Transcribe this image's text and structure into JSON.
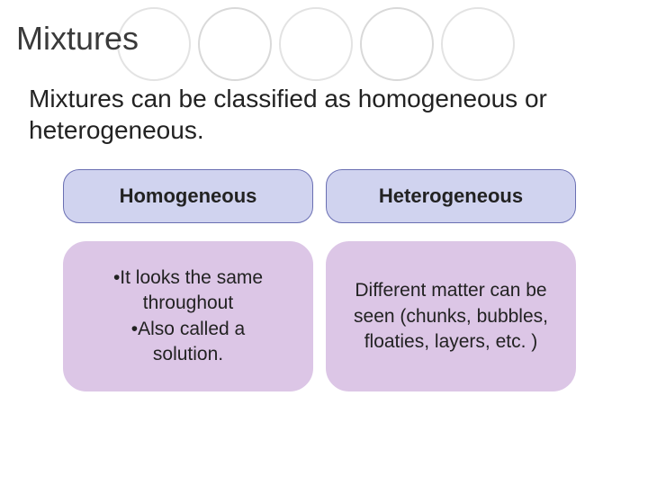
{
  "title": "Mixtures",
  "subtitle": "Mixtures can be classified as homogeneous or heterogeneous.",
  "circles": {
    "colors": [
      "#e3e3e3",
      "#d9d9d9",
      "#e3e3e3",
      "#d9d9d9",
      "#e3e3e3"
    ],
    "border_width": 2
  },
  "table": {
    "header_bg": "#d0d3ef",
    "header_border": "#6a6fb3",
    "body_bg": "#dcc6e6",
    "body_border": "#dcc6e6",
    "columns": [
      {
        "header": "Homogeneous",
        "body": "•It looks the same\nthroughout\n•Also called a\nsolution."
      },
      {
        "header": "Heterogeneous",
        "body": "Different matter can be seen (chunks, bubbles, floaties, layers, etc. )"
      }
    ]
  },
  "fonts": {
    "title_size": 36,
    "subtitle_size": 28,
    "header_size": 22,
    "body_size": 21
  },
  "background_color": "#ffffff"
}
